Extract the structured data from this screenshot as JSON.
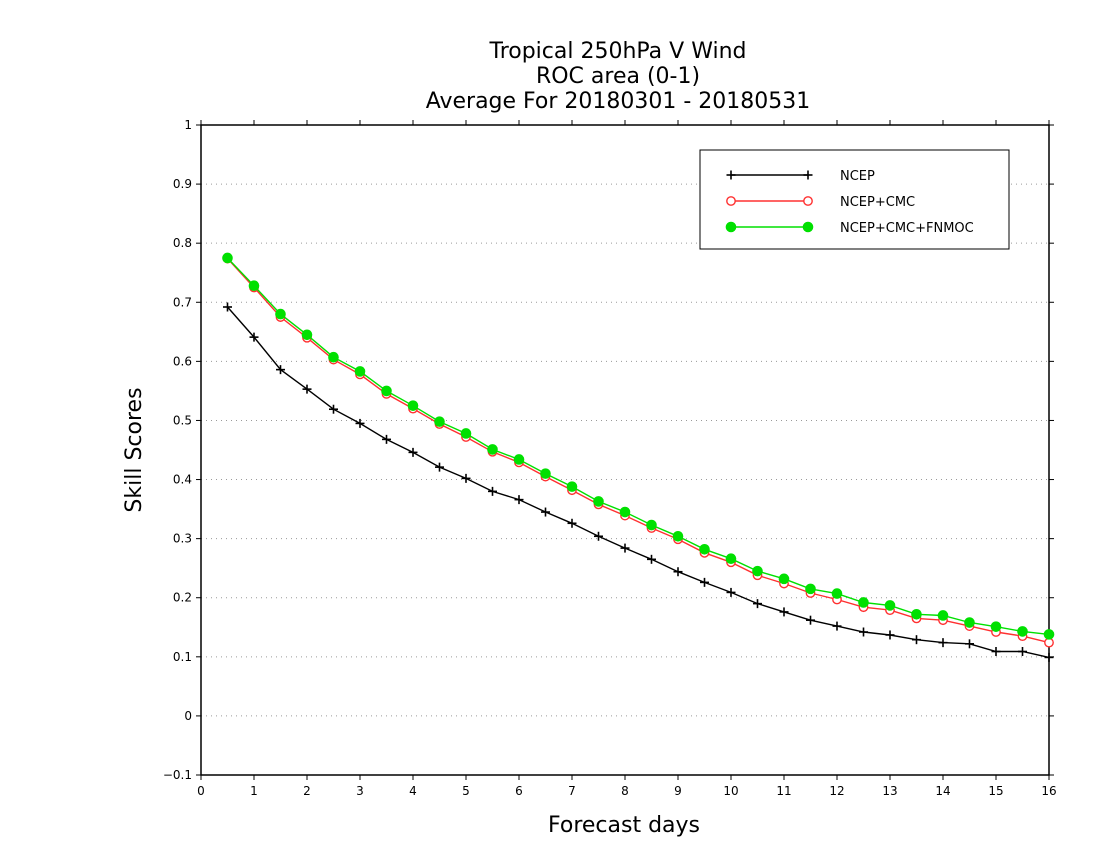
{
  "chart_data": {
    "type": "line",
    "title": [
      "Tropical 250hPa V Wind",
      "ROC area (0-1)",
      "Average For 20180301 - 20180531"
    ],
    "xlabel": "Forecast days",
    "ylabel": "Skill Scores",
    "xlim": [
      0,
      16
    ],
    "ylim": [
      -0.1,
      1
    ],
    "x_ticks": [
      0,
      1,
      2,
      3,
      4,
      5,
      6,
      7,
      8,
      9,
      10,
      11,
      12,
      13,
      14,
      15,
      16
    ],
    "x_tick_labels": [
      "0",
      "1",
      "2",
      "3",
      "4",
      "5",
      "6",
      "7",
      "8",
      "9",
      "10",
      "11",
      "12",
      "13",
      "14",
      "15",
      "16"
    ],
    "y_ticks": [
      -0.1,
      0,
      0.1,
      0.2,
      0.3,
      0.4,
      0.5,
      0.6,
      0.7,
      0.8,
      0.9,
      1
    ],
    "y_tick_labels": [
      "−0.1",
      "0",
      "0.1",
      "0.2",
      "0.3",
      "0.4",
      "0.5",
      "0.6",
      "0.7",
      "0.8",
      "0.9",
      "1"
    ],
    "grid": "horizontal dotted",
    "legend_position": "top-right",
    "x": [
      0.5,
      1,
      1.5,
      2,
      2.5,
      3,
      3.5,
      4,
      4.5,
      5,
      5.5,
      6,
      6.5,
      7,
      7.5,
      8,
      8.5,
      9,
      9.5,
      10,
      10.5,
      11,
      11.5,
      12,
      12.5,
      13,
      13.5,
      14,
      14.5,
      15,
      15.5,
      16
    ],
    "series": [
      {
        "name": "NCEP",
        "color": "#000000",
        "marker": "plus",
        "values": [
          0.692,
          0.641,
          0.586,
          0.553,
          0.519,
          0.495,
          0.468,
          0.446,
          0.421,
          0.402,
          0.38,
          0.366,
          0.345,
          0.326,
          0.304,
          0.284,
          0.265,
          0.244,
          0.226,
          0.209,
          0.19,
          0.176,
          0.162,
          0.152,
          0.142,
          0.137,
          0.129,
          0.124,
          0.122,
          0.109,
          0.109,
          0.099
        ]
      },
      {
        "name": "NCEP+CMC",
        "color": "#ff3030",
        "marker": "open-circle",
        "values": [
          0.774,
          0.725,
          0.675,
          0.64,
          0.603,
          0.578,
          0.545,
          0.52,
          0.494,
          0.472,
          0.447,
          0.429,
          0.405,
          0.382,
          0.358,
          0.339,
          0.318,
          0.299,
          0.276,
          0.26,
          0.238,
          0.224,
          0.208,
          0.197,
          0.184,
          0.179,
          0.165,
          0.162,
          0.152,
          0.142,
          0.135,
          0.124
        ]
      },
      {
        "name": "NCEP+CMC+FNMOC",
        "color": "#00e000",
        "marker": "filled-circle",
        "values": [
          0.775,
          0.728,
          0.68,
          0.645,
          0.607,
          0.583,
          0.55,
          0.525,
          0.498,
          0.478,
          0.451,
          0.434,
          0.41,
          0.388,
          0.363,
          0.345,
          0.323,
          0.304,
          0.282,
          0.266,
          0.245,
          0.232,
          0.215,
          0.207,
          0.192,
          0.187,
          0.172,
          0.17,
          0.158,
          0.151,
          0.143,
          0.138
        ]
      }
    ]
  }
}
